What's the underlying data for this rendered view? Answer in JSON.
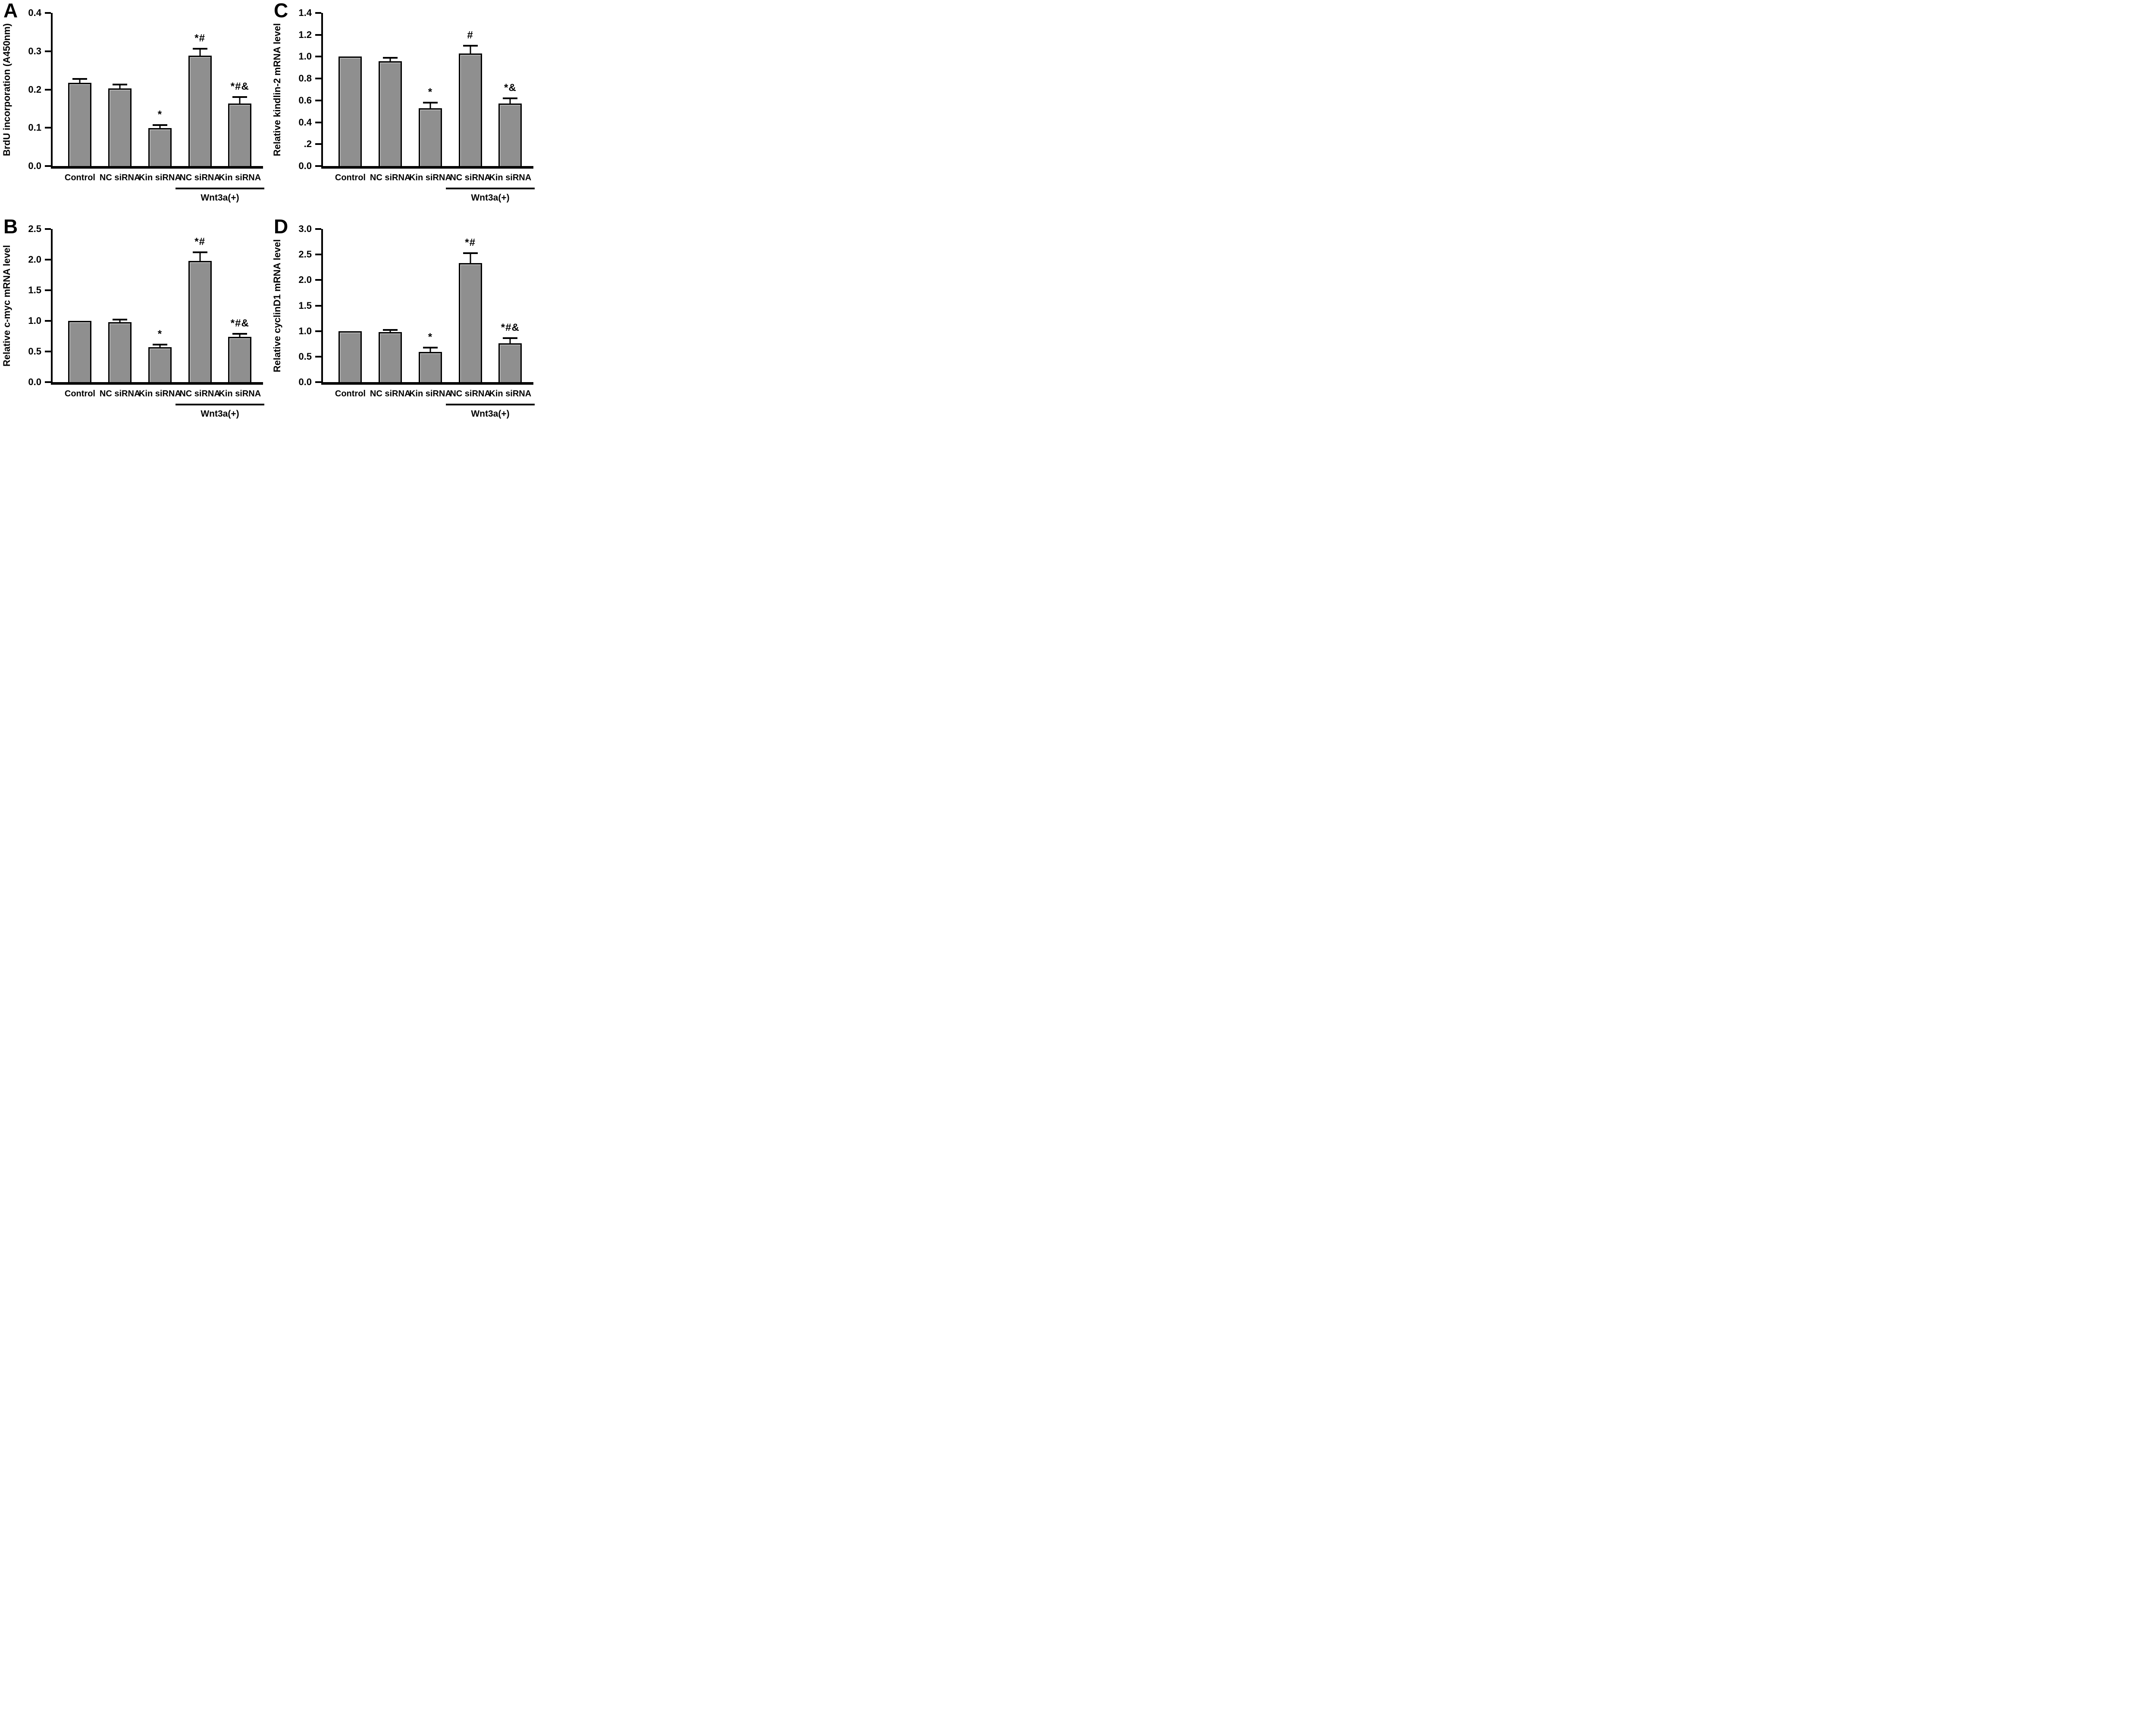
{
  "figure": {
    "background_color": "#ffffff",
    "bar_fill_color": "#8f8f8f",
    "bar_border_color": "#000000",
    "text_color": "#000000",
    "panel_grid_order": [
      "A",
      "C",
      "B",
      "D"
    ]
  },
  "chart_data": [
    {
      "type": "bar",
      "panel_label": "A",
      "ylabel": "BrdU incorporation (A450nm)",
      "xlabel": "",
      "ylim": [
        0,
        0.4
      ],
      "grid": false,
      "legend": null,
      "yticks": [
        {
          "label": "0.0",
          "value": 0.0
        },
        {
          "label": "0.1",
          "value": 0.1
        },
        {
          "label": "0.2",
          "value": 0.2
        },
        {
          "label": "0.3",
          "value": 0.3
        },
        {
          "label": "0.4",
          "value": 0.4
        }
      ],
      "categories": [
        "Control",
        "NC siRNA",
        "Kin siRNA",
        "NC siRNA",
        "Kin siRNA"
      ],
      "values": [
        0.218,
        0.203,
        0.099,
        0.288,
        0.163
      ],
      "errors": [
        0.01,
        0.01,
        0.008,
        0.019,
        0.017
      ],
      "significance": [
        "",
        "",
        "*",
        "*#",
        "*#&"
      ],
      "group_annotation": {
        "label": "Wnt3a(+)",
        "bar_indices": [
          3,
          4
        ]
      }
    },
    {
      "type": "bar",
      "panel_label": "B",
      "ylabel": "Relative c-myc mRNA level",
      "xlabel": "",
      "ylim": [
        0,
        2.5
      ],
      "grid": false,
      "legend": null,
      "yticks": [
        {
          "label": "0.0",
          "value": 0.0
        },
        {
          "label": "0.5",
          "value": 0.5
        },
        {
          "label": "1.0",
          "value": 1.0
        },
        {
          "label": "1.5",
          "value": 1.5
        },
        {
          "label": "2.0",
          "value": 2.0
        },
        {
          "label": "2.5",
          "value": 2.5
        }
      ],
      "categories": [
        "Control",
        "NC siRNA",
        "Kin siRNA",
        "NC siRNA",
        "Kin siRNA"
      ],
      "values": [
        1.0,
        0.98,
        0.57,
        1.98,
        0.74
      ],
      "errors": [
        0,
        0.04,
        0.04,
        0.14,
        0.05
      ],
      "significance": [
        "",
        "",
        "*",
        "*#",
        "*#&"
      ],
      "group_annotation": {
        "label": "Wnt3a(+)",
        "bar_indices": [
          3,
          4
        ]
      }
    },
    {
      "type": "bar",
      "panel_label": "C",
      "ylabel": "Relative kindlin-2 mRNA level",
      "xlabel": "",
      "ylim": [
        0,
        1.4
      ],
      "grid": false,
      "legend": null,
      "yticks": [
        {
          "label": "0.0",
          "value": 0.0
        },
        {
          "label": ".2",
          "value": 0.2
        },
        {
          "label": "0.4",
          "value": 0.4
        },
        {
          "label": "0.6",
          "value": 0.6
        },
        {
          "label": "0.8",
          "value": 0.8
        },
        {
          "label": "1.0",
          "value": 1.0
        },
        {
          "label": "1.2",
          "value": 1.2
        },
        {
          "label": "1.4",
          "value": 1.4
        }
      ],
      "categories": [
        "Control",
        "NC siRNA",
        "Kin siRNA",
        "NC siRNA",
        "Kin siRNA"
      ],
      "values": [
        1.0,
        0.96,
        0.53,
        1.03,
        0.57
      ],
      "errors": [
        0,
        0.03,
        0.05,
        0.07,
        0.05
      ],
      "significance": [
        "",
        "",
        "*",
        "#",
        "*&"
      ],
      "group_annotation": {
        "label": "Wnt3a(+)",
        "bar_indices": [
          3,
          4
        ]
      }
    },
    {
      "type": "bar",
      "panel_label": "D",
      "ylabel": "Relative cyclinD1 mRNA level",
      "xlabel": "",
      "ylim": [
        0,
        3.0
      ],
      "grid": false,
      "legend": null,
      "yticks": [
        {
          "label": "0.0",
          "value": 0.0
        },
        {
          "label": "0.5",
          "value": 0.5
        },
        {
          "label": "1.0",
          "value": 1.0
        },
        {
          "label": "1.5",
          "value": 1.5
        },
        {
          "label": "2.0",
          "value": 2.0
        },
        {
          "label": "2.5",
          "value": 2.5
        },
        {
          "label": "3.0",
          "value": 3.0
        }
      ],
      "categories": [
        "Control",
        "NC siRNA",
        "Kin siRNA",
        "NC siRNA",
        "Kin siRNA"
      ],
      "values": [
        1.0,
        0.98,
        0.59,
        2.33,
        0.76
      ],
      "errors": [
        0,
        0.04,
        0.09,
        0.2,
        0.1
      ],
      "significance": [
        "",
        "",
        "*",
        "*#",
        "*#&"
      ],
      "group_annotation": {
        "label": "Wnt3a(+)",
        "bar_indices": [
          3,
          4
        ]
      }
    }
  ]
}
